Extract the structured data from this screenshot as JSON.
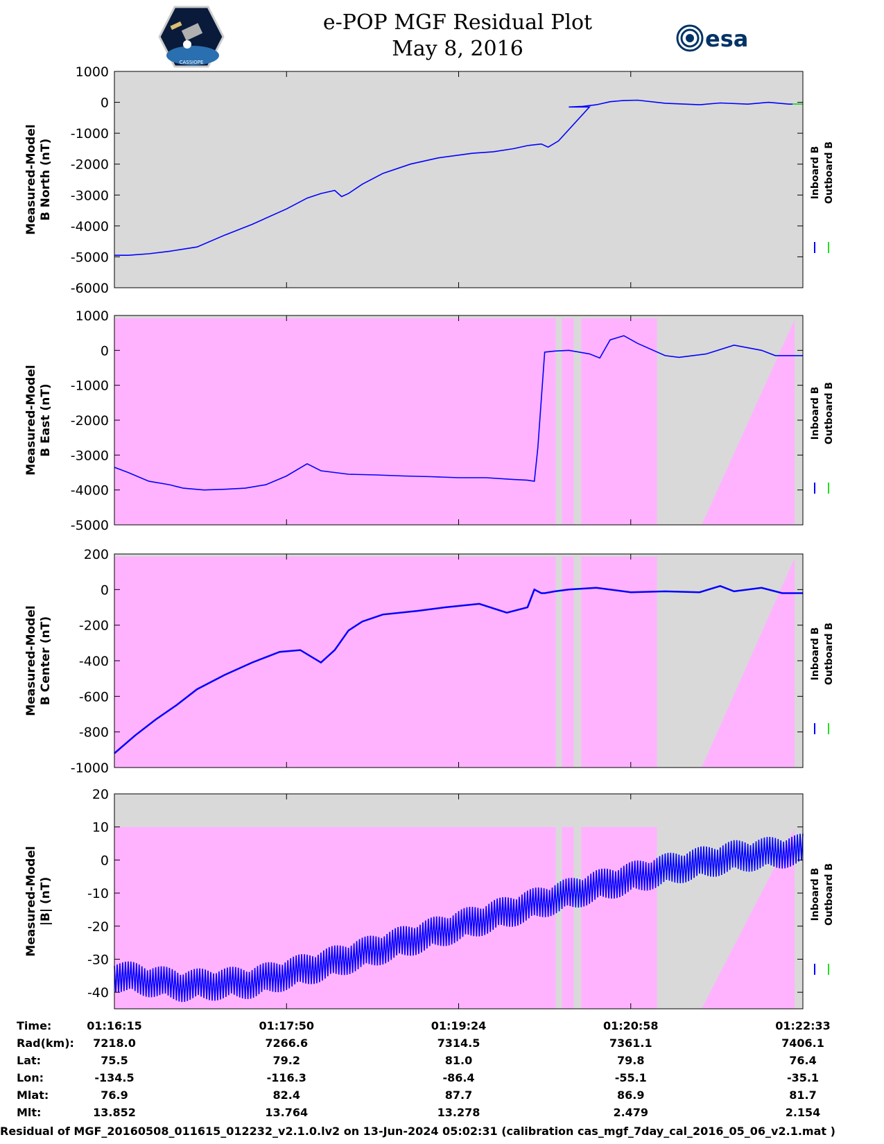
{
  "title": "e-POP MGF Residual Plot",
  "date": "May 8, 2016",
  "logos": {
    "left": "CASSIOPE",
    "right": "esa"
  },
  "colors": {
    "gray_bg": "#d9d9d9",
    "pink_bg": "#ffb3ff",
    "inboard": "#0000ff",
    "outboard": "#22dd22",
    "esa_blue": "#003366"
  },
  "chart_data": [
    {
      "type": "line",
      "ylabel": [
        "Measured-Model",
        "B North (nT)"
      ],
      "ylim": [
        -6000,
        1000
      ],
      "yticks": [
        1000,
        0,
        -1000,
        -2000,
        -3000,
        -4000,
        -5000,
        -6000
      ],
      "legend": [
        "Inboard B",
        "Outboard B"
      ],
      "background": "gray",
      "series": [
        {
          "name": "Inboard B",
          "x": [
            0,
            0.02,
            0.05,
            0.08,
            0.12,
            0.16,
            0.2,
            0.25,
            0.28,
            0.3,
            0.32,
            0.33,
            0.34,
            0.36,
            0.39,
            0.43,
            0.47,
            0.52,
            0.55,
            0.58,
            0.6,
            0.62,
            0.63,
            0.645,
            0.69,
            0.66,
            0.68,
            0.7,
            0.72,
            0.74,
            0.76,
            0.8,
            0.85,
            0.88,
            0.92,
            0.95,
            0.98,
            1.0
          ],
          "y": [
            -4950,
            -4950,
            -4900,
            -4820,
            -4680,
            -4300,
            -3950,
            -3450,
            -3100,
            -2950,
            -2850,
            -3050,
            -2950,
            -2650,
            -2300,
            -2000,
            -1800,
            -1650,
            -1600,
            -1500,
            -1400,
            -1350,
            -1450,
            -1250,
            -150,
            -150,
            -130,
            -80,
            20,
            60,
            70,
            -30,
            -80,
            -20,
            -60,
            0,
            -60,
            -60
          ]
        },
        {
          "name": "Outboard B",
          "x": [
            0.985,
            1.0
          ],
          "y": [
            -60,
            -60
          ]
        }
      ]
    },
    {
      "type": "line",
      "ylabel": [
        "Measured-Model",
        "B East (nT)"
      ],
      "ylim": [
        -5000,
        1000
      ],
      "yticks": [
        1000,
        0,
        -1000,
        -2000,
        -3000,
        -4000,
        -5000
      ],
      "legend": [
        "Inboard B",
        "Outboard B"
      ],
      "background": "pink",
      "series": [
        {
          "name": "Inboard B",
          "x": [
            0,
            0.02,
            0.05,
            0.08,
            0.1,
            0.13,
            0.16,
            0.19,
            0.22,
            0.25,
            0.28,
            0.3,
            0.32,
            0.34,
            0.38,
            0.42,
            0.46,
            0.5,
            0.54,
            0.58,
            0.6,
            0.61,
            0.615,
            0.625,
            0.64,
            0.66,
            0.69,
            0.705,
            0.72,
            0.74,
            0.76,
            0.8,
            0.82,
            0.86,
            0.9,
            0.94,
            0.96,
            1.0
          ],
          "y": [
            -3350,
            -3500,
            -3750,
            -3850,
            -3950,
            -4000,
            -3980,
            -3950,
            -3850,
            -3600,
            -3250,
            -3450,
            -3500,
            -3550,
            -3570,
            -3600,
            -3620,
            -3650,
            -3650,
            -3700,
            -3720,
            -3750,
            -2800,
            -50,
            -20,
            0,
            -100,
            -220,
            300,
            420,
            200,
            -150,
            -200,
            -100,
            150,
            0,
            -150,
            -150
          ]
        }
      ]
    },
    {
      "type": "line",
      "ylabel": [
        "Measured-Model",
        "B Center (nT)"
      ],
      "ylim": [
        -1000,
        200
      ],
      "yticks": [
        200,
        0,
        -200,
        -400,
        -600,
        -800,
        -1000
      ],
      "legend": [
        "Inboard B",
        "Outboard B"
      ],
      "background": "pink",
      "series": [
        {
          "name": "Inboard B",
          "x": [
            0,
            0.03,
            0.06,
            0.09,
            0.12,
            0.16,
            0.2,
            0.24,
            0.27,
            0.3,
            0.32,
            0.34,
            0.36,
            0.39,
            0.44,
            0.48,
            0.53,
            0.57,
            0.6,
            0.61,
            0.62,
            0.625,
            0.64,
            0.66,
            0.7,
            0.75,
            0.8,
            0.85,
            0.88,
            0.9,
            0.94,
            0.97,
            1.0
          ],
          "y": [
            -920,
            -820,
            -730,
            -650,
            -560,
            -480,
            -410,
            -350,
            -340,
            -410,
            -340,
            -230,
            -180,
            -140,
            -120,
            -100,
            -80,
            -130,
            -100,
            0,
            -20,
            -20,
            -10,
            0,
            10,
            -15,
            -10,
            -15,
            20,
            -10,
            10,
            -20,
            -20
          ]
        }
      ]
    },
    {
      "type": "line",
      "ylabel": [
        "Measured-Model",
        "|B| (nT)"
      ],
      "ylim": [
        -45,
        20
      ],
      "yticks": [
        20,
        10,
        0,
        -10,
        -20,
        -30,
        -40
      ],
      "legend": [
        "Inboard B",
        "Outboard B"
      ],
      "background": "pink",
      "series": [
        {
          "name": "Inboard B",
          "x": [
            0,
            0.1,
            0.2,
            0.3,
            0.4,
            0.5,
            0.6,
            0.7,
            0.8,
            0.9,
            1.0
          ],
          "y": [
            -35,
            -38,
            -37,
            -32,
            -26,
            -20,
            -14,
            -8,
            -3,
            1,
            3
          ]
        }
      ]
    }
  ],
  "ephemeris": {
    "labels": [
      "Time:",
      "Rad(km):",
      "Lat:",
      "Lon:",
      "Mlat:",
      "Mlt:"
    ],
    "columns": [
      [
        "01:16:15",
        "7218.0",
        "75.5",
        "-134.5",
        "76.9",
        "13.852"
      ],
      [
        "01:17:50",
        "7266.6",
        "79.2",
        "-116.3",
        "82.4",
        "13.764"
      ],
      [
        "01:19:24",
        "7314.5",
        "81.0",
        "-86.4",
        "87.7",
        "13.278"
      ],
      [
        "01:20:58",
        "7361.1",
        "79.8",
        "-55.1",
        "86.9",
        "2.479"
      ],
      [
        "01:22:33",
        "7406.1",
        "76.4",
        "-35.1",
        "81.7",
        "2.154"
      ]
    ]
  },
  "footer": "Residual of MGF_20160508_011615_012232_v2.1.0.lv2 on 13-Jun-2024 05:02:31 (calibration cas_mgf_7day_cal_2016_05_06_v2.1.mat )"
}
